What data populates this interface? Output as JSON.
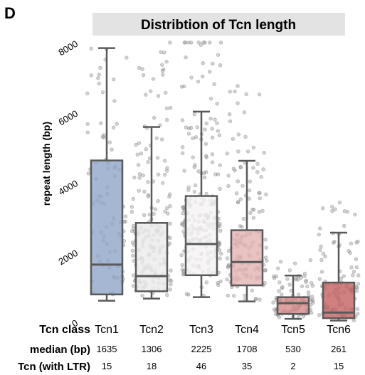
{
  "panel_letter": "D",
  "chart_data": {
    "type": "box",
    "title": "Distribtion of Tcn length",
    "ylabel": "repeat length (bp)",
    "ylim": [
      0,
      8200
    ],
    "yticks": [
      0,
      2000,
      4000,
      6000,
      8000
    ],
    "grid": false,
    "colors": {
      "Tcn1": "#8fa5c8",
      "Tcn2": "#ebebeb",
      "Tcn3": "#f5f3f3",
      "Tcn4": "#e3b3b3",
      "Tcn5": "#d48a8a",
      "Tcn6": "#c36060",
      "title_bar": "#e3e3e3",
      "points": "#9c9c9c"
    },
    "categories": [
      "Tcn1",
      "Tcn2",
      "Tcn3",
      "Tcn4",
      "Tcn5",
      "Tcn6"
    ],
    "boxes": [
      {
        "name": "Tcn1",
        "min": 600,
        "q1": 780,
        "median": 1635,
        "q3": 4620,
        "max": 7840
      },
      {
        "name": "Tcn2",
        "min": 660,
        "q1": 870,
        "median": 1306,
        "q3": 2830,
        "max": 5580
      },
      {
        "name": "Tcn3",
        "min": 700,
        "q1": 1330,
        "median": 2225,
        "q3": 3600,
        "max": 6020
      },
      {
        "name": "Tcn4",
        "min": 580,
        "q1": 1040,
        "median": 1708,
        "q3": 2620,
        "max": 4610
      },
      {
        "name": "Tcn5",
        "min": 80,
        "q1": 220,
        "median": 530,
        "q3": 700,
        "max": 1320
      },
      {
        "name": "Tcn6",
        "min": 30,
        "q1": 100,
        "median": 261,
        "q3": 1120,
        "max": 2550
      }
    ]
  },
  "table": {
    "class_label": "Tcn class",
    "median_label": "median (bp)",
    "ltr_label": "Tcn (with LTR)",
    "classes": [
      "Tcn1",
      "Tcn2",
      "Tcn3",
      "Tcn4",
      "Tcn5",
      "Tcn6"
    ],
    "medians": [
      "1635",
      "1306",
      "2225",
      "1708",
      "530",
      "261"
    ],
    "ltr_counts": [
      "15",
      "18",
      "46",
      "35",
      "2",
      "15"
    ]
  }
}
